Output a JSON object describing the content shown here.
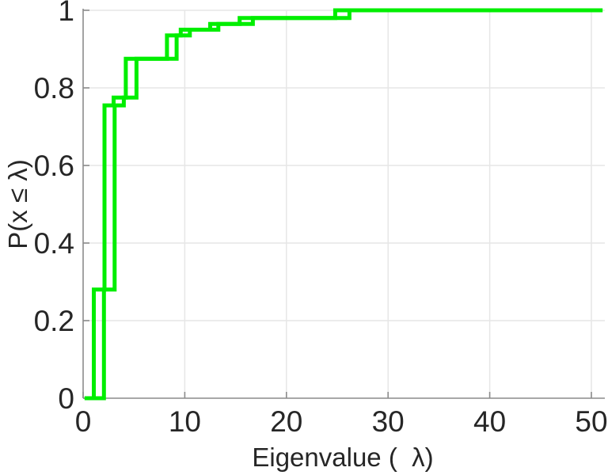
{
  "window": {
    "background": "#ffffff"
  },
  "chart_data": {
    "type": "line",
    "subtype": "empirical-cdf-staircase",
    "title": "",
    "xlabel": "Eigenvalue (  λ)",
    "ylabel": "P(x ≤ λ)",
    "xlim": [
      0,
      51.1
    ],
    "ylim": [
      0,
      1
    ],
    "grid": true,
    "legend": null,
    "x_ticks": {
      "values": [
        0,
        10,
        20,
        30,
        40,
        50
      ],
      "labels": [
        "0",
        "10",
        "20",
        "30",
        "40",
        "50"
      ]
    },
    "y_ticks": {
      "values": [
        0,
        0.2,
        0.4,
        0.6,
        0.8,
        1
      ],
      "labels": [
        "0",
        "0.2",
        "0.4",
        "0.6",
        "0.8",
        "1"
      ]
    },
    "style": {
      "line_color": "#00ee00",
      "line_width": 5,
      "axis_color": "#8c8c8c",
      "grid_color": "#e6e6e6",
      "text_color": "#262626"
    },
    "series": [
      {
        "name": "ecdf-step-curve-1",
        "start_x": 0.15,
        "end_x": 51.1,
        "baseline_p": 0,
        "jumps": [
          {
            "x": 1.05,
            "p": 0.28
          },
          {
            "x": 2.1,
            "p": 0.755
          },
          {
            "x": 3.0,
            "p": 0.775
          },
          {
            "x": 4.2,
            "p": 0.875
          },
          {
            "x": 8.25,
            "p": 0.935
          },
          {
            "x": 9.6,
            "p": 0.95
          },
          {
            "x": 12.5,
            "p": 0.965
          },
          {
            "x": 15.4,
            "p": 0.98
          },
          {
            "x": 24.8,
            "p": 1.0
          }
        ]
      },
      {
        "name": "ecdf-step-curve-2",
        "start_x": 0.15,
        "end_x": 51.1,
        "baseline_p": 0,
        "jumps": [
          {
            "x": 2.05,
            "p": 0.28
          },
          {
            "x": 3.1,
            "p": 0.755
          },
          {
            "x": 4.0,
            "p": 0.775
          },
          {
            "x": 5.25,
            "p": 0.875
          },
          {
            "x": 9.2,
            "p": 0.935
          },
          {
            "x": 10.5,
            "p": 0.95
          },
          {
            "x": 13.3,
            "p": 0.965
          },
          {
            "x": 16.7,
            "p": 0.98
          },
          {
            "x": 26.2,
            "p": 1.0
          }
        ]
      }
    ]
  }
}
